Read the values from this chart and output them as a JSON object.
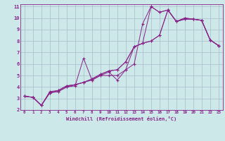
{
  "title": "",
  "xlabel": "Windchill (Refroidissement éolien,°C)",
  "bg_color": "#cce8e8",
  "line_color": "#882288",
  "grid_color": "#aabbcc",
  "xlim": [
    -0.5,
    23.5
  ],
  "ylim": [
    2,
    11.2
  ],
  "xticks": [
    0,
    1,
    2,
    3,
    4,
    5,
    6,
    7,
    8,
    9,
    10,
    11,
    12,
    13,
    14,
    15,
    16,
    17,
    18,
    19,
    20,
    21,
    22,
    23
  ],
  "yticks": [
    2,
    3,
    4,
    5,
    6,
    7,
    8,
    9,
    10,
    11
  ],
  "series": [
    {
      "x": [
        0,
        1,
        2,
        3,
        4,
        5,
        6,
        7,
        8,
        9,
        10,
        11,
        12,
        13,
        14,
        15,
        16,
        17,
        18,
        19,
        20,
        21,
        22,
        23
      ],
      "y": [
        3.2,
        3.1,
        2.4,
        3.5,
        3.6,
        4.0,
        4.1,
        6.5,
        4.6,
        5.0,
        5.0,
        5.0,
        5.5,
        6.0,
        9.5,
        11.0,
        10.5,
        10.7,
        9.7,
        9.9,
        9.9,
        9.8,
        8.1,
        7.6
      ]
    },
    {
      "x": [
        0,
        1,
        2,
        3,
        4,
        5,
        6,
        7,
        8,
        9,
        10,
        11,
        12,
        13,
        14,
        15,
        16,
        17,
        18,
        19,
        20,
        21,
        22,
        23
      ],
      "y": [
        3.2,
        3.1,
        2.4,
        3.5,
        3.6,
        4.0,
        4.2,
        4.4,
        4.6,
        5.0,
        5.3,
        4.6,
        5.5,
        7.5,
        7.8,
        11.0,
        10.5,
        10.7,
        9.7,
        9.9,
        9.9,
        9.8,
        8.1,
        7.6
      ]
    },
    {
      "x": [
        0,
        1,
        2,
        3,
        4,
        5,
        6,
        7,
        8,
        9,
        10,
        11,
        12,
        13,
        14,
        15,
        16,
        17,
        18,
        19,
        20,
        21,
        22,
        23
      ],
      "y": [
        3.2,
        3.1,
        2.4,
        3.5,
        3.7,
        4.1,
        4.2,
        4.4,
        4.7,
        5.1,
        5.4,
        5.5,
        6.2,
        7.5,
        7.8,
        8.0,
        8.5,
        10.7,
        9.7,
        10.0,
        9.9,
        9.8,
        8.1,
        7.6
      ]
    },
    {
      "x": [
        0,
        1,
        2,
        3,
        4,
        5,
        6,
        7,
        8,
        9,
        10,
        11,
        12,
        13,
        14,
        15,
        16,
        17,
        18,
        19,
        20,
        21,
        22,
        23
      ],
      "y": [
        3.2,
        3.1,
        2.4,
        3.6,
        3.7,
        4.1,
        4.2,
        4.4,
        4.7,
        5.1,
        5.4,
        5.5,
        6.2,
        7.5,
        7.8,
        8.0,
        8.5,
        10.7,
        9.7,
        10.0,
        9.9,
        9.8,
        8.1,
        7.6
      ]
    }
  ]
}
